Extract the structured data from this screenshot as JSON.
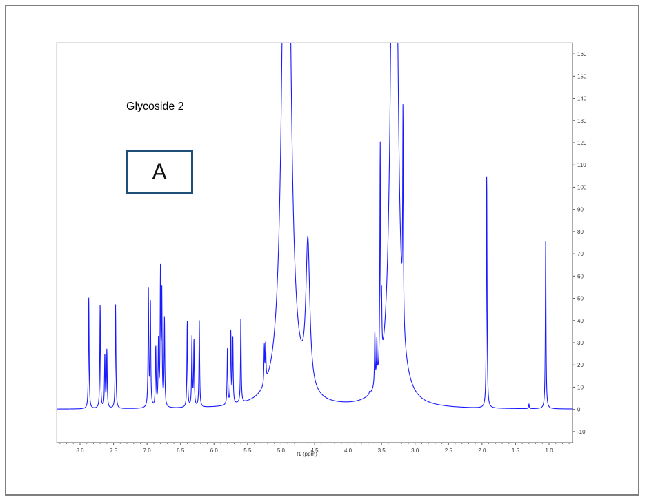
{
  "colors": {
    "spectrum": "#1a1aff",
    "frame": "#7f7f7f",
    "panel_border": "#1f4e79"
  },
  "chart_data": {
    "type": "line",
    "title": "Glycoside 2",
    "panel_label": "A",
    "xlabel": "f1 (ppm)",
    "ylabel": "",
    "xlim": [
      8.35,
      0.65
    ],
    "ylim": [
      -15,
      165
    ],
    "x_reversed": true,
    "grid": false,
    "x_ticks": [
      8.0,
      7.5,
      7.0,
      6.5,
      6.0,
      5.5,
      5.0,
      4.5,
      4.0,
      3.5,
      3.0,
      2.5,
      2.0,
      1.5,
      1.0
    ],
    "x_tick_labels": [
      "8.0",
      "7.5",
      "7.0",
      "6.5",
      "6.0",
      "5.5",
      "5.0",
      "4.5",
      "4.0",
      "3.5",
      "3.0",
      "2.5",
      "2.0",
      "1.5",
      "1.0"
    ],
    "y_ticks": [
      -10,
      0,
      10,
      20,
      30,
      40,
      50,
      60,
      70,
      80,
      90,
      100,
      110,
      120,
      130,
      140,
      150,
      160
    ],
    "y_tick_labels": [
      "-10",
      "0",
      "10",
      "20",
      "30",
      "40",
      "50",
      "60",
      "70",
      "80",
      "90",
      "100",
      "110",
      "120",
      "130",
      "140",
      "150",
      "160"
    ],
    "y_axis_side": "right",
    "peaks": [
      {
        "ppm": 7.87,
        "height": 50
      },
      {
        "ppm": 7.7,
        "height": 47
      },
      {
        "ppm": 7.63,
        "height": 24
      },
      {
        "ppm": 7.6,
        "height": 26
      },
      {
        "ppm": 7.47,
        "height": 47
      },
      {
        "ppm": 6.98,
        "height": 53
      },
      {
        "ppm": 6.95,
        "height": 48
      },
      {
        "ppm": 6.87,
        "height": 27
      },
      {
        "ppm": 6.83,
        "height": 29
      },
      {
        "ppm": 6.8,
        "height": 59
      },
      {
        "ppm": 6.78,
        "height": 50
      },
      {
        "ppm": 6.74,
        "height": 40
      },
      {
        "ppm": 6.4,
        "height": 39
      },
      {
        "ppm": 6.33,
        "height": 31
      },
      {
        "ppm": 6.3,
        "height": 30
      },
      {
        "ppm": 6.22,
        "height": 39
      },
      {
        "ppm": 5.8,
        "height": 26
      },
      {
        "ppm": 5.75,
        "height": 32
      },
      {
        "ppm": 5.72,
        "height": 30
      },
      {
        "ppm": 5.6,
        "height": 39
      },
      {
        "ppm": 5.25,
        "height": 17
      },
      {
        "ppm": 5.23,
        "height": 17
      },
      {
        "ppm": 4.92,
        "height": 400,
        "width": 0.055
      },
      {
        "ppm": 4.6,
        "height": 66,
        "width": 0.035
      },
      {
        "ppm": 3.6,
        "height": 24
      },
      {
        "ppm": 3.57,
        "height": 18
      },
      {
        "ppm": 3.52,
        "height": 100
      },
      {
        "ppm": 3.5,
        "height": 26
      },
      {
        "ppm": 3.31,
        "height": 400,
        "width": 0.045
      },
      {
        "ppm": 3.18,
        "height": 95
      },
      {
        "ppm": 1.93,
        "height": 106
      },
      {
        "ppm": 1.05,
        "height": 76
      },
      {
        "ppm": 3.68,
        "height": 1
      },
      {
        "ppm": 1.3,
        "height": 2
      }
    ]
  }
}
